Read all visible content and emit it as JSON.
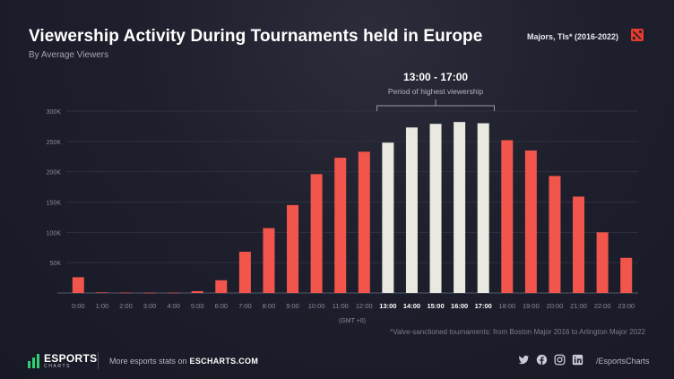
{
  "header": {
    "title": "Viewership Activity During Tournaments held in Europe",
    "subtitle": "By Average Viewers",
    "scope": "Majors, TIs* (2016-2022)",
    "game_icon": "dota2-logo-icon"
  },
  "chart_data": {
    "type": "bar",
    "title": "Viewership Activity During Tournaments held in Europe",
    "subtitle": "By Average Viewers",
    "xlabel": "(GMT +0)",
    "ylabel": "",
    "ylim": [
      0,
      300000
    ],
    "yticks": [
      50000,
      100000,
      150000,
      200000,
      250000,
      300000
    ],
    "ytick_labels": [
      "50K",
      "100K",
      "150K",
      "200K",
      "250K",
      "300K"
    ],
    "grid": true,
    "categories": [
      "0:00",
      "1:00",
      "2:00",
      "3:00",
      "4:00",
      "5:00",
      "6:00",
      "7:00",
      "8:00",
      "9:00",
      "10:00",
      "11:00",
      "12:00",
      "13:00",
      "14:00",
      "15:00",
      "16:00",
      "17:00",
      "18:00",
      "19:00",
      "20:00",
      "21:00",
      "22:00",
      "23:00"
    ],
    "values": [
      26000,
      1000,
      600,
      400,
      500,
      3000,
      21000,
      68000,
      107000,
      145000,
      196000,
      223000,
      233000,
      248000,
      273000,
      279000,
      282000,
      280000,
      252000,
      235000,
      193000,
      159000,
      100000,
      58000
    ],
    "highlight_categories": [
      "13:00",
      "14:00",
      "15:00",
      "16:00",
      "17:00"
    ],
    "annotation": {
      "range_label": "13:00 - 17:00",
      "caption": "Period of highest viewership",
      "from": "13:00",
      "to": "17:00"
    },
    "colors": {
      "normal": "#f2554c",
      "highlight": "#e9e9e1"
    }
  },
  "colors": {
    "background": "#1b1c29",
    "bar": "#f2554c",
    "bar_highlight": "#e9e9e1",
    "grid": "#2f3040",
    "axis_text": "#8a8c9b",
    "brand_green": "#2fcf74"
  },
  "footnote": "*Valve-sanctioned tournaments: from Boston Major 2016 to Arlington Major 2022",
  "footer": {
    "brand_name": "ESPORTS",
    "brand_sub": "CHARTS",
    "more_text": "More esports stats on",
    "more_link": "ESCHARTS.COM",
    "socials": [
      "twitter-icon",
      "facebook-icon",
      "instagram-icon",
      "linkedin-icon"
    ],
    "handle": "/EsportsCharts"
  }
}
